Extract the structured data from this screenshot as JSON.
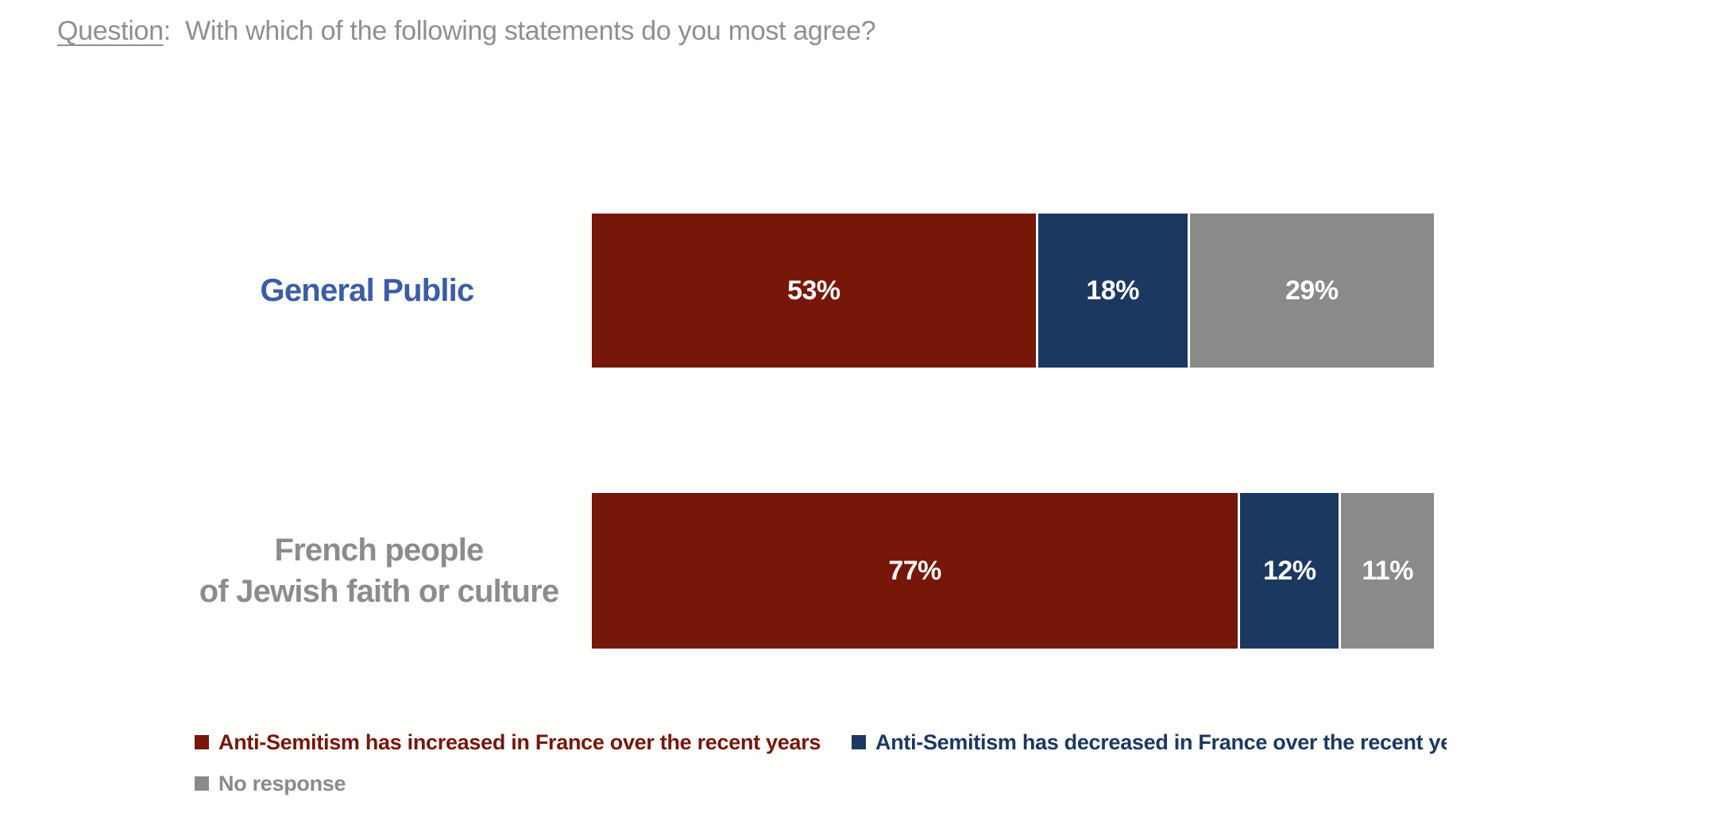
{
  "title": {
    "label": "Question",
    "separator": ":  ",
    "text": "With which of the following statements do you most agree?",
    "color": "#8f8f8f"
  },
  "chart_data": {
    "type": "bar",
    "subtype": "horizontal-stacked",
    "value_suffix": "%",
    "xlim": [
      0,
      100
    ],
    "grid": false,
    "legend_position": "bottom",
    "categories": [
      "General Public",
      "French people\nof Jewish faith or culture"
    ],
    "category_colors": [
      "#3c5ca6",
      "#8c8c8c"
    ],
    "series": [
      {
        "name": "Anti-Semitism has increased in France over the recent years",
        "color": "#76170a",
        "values": [
          53,
          77
        ]
      },
      {
        "name": "Anti-Semitism has decreased in France over the recent years",
        "color": "#1b3960",
        "values": [
          18,
          12
        ]
      },
      {
        "name": "No response",
        "color": "#8a8a8a",
        "values": [
          29,
          11
        ]
      }
    ]
  }
}
